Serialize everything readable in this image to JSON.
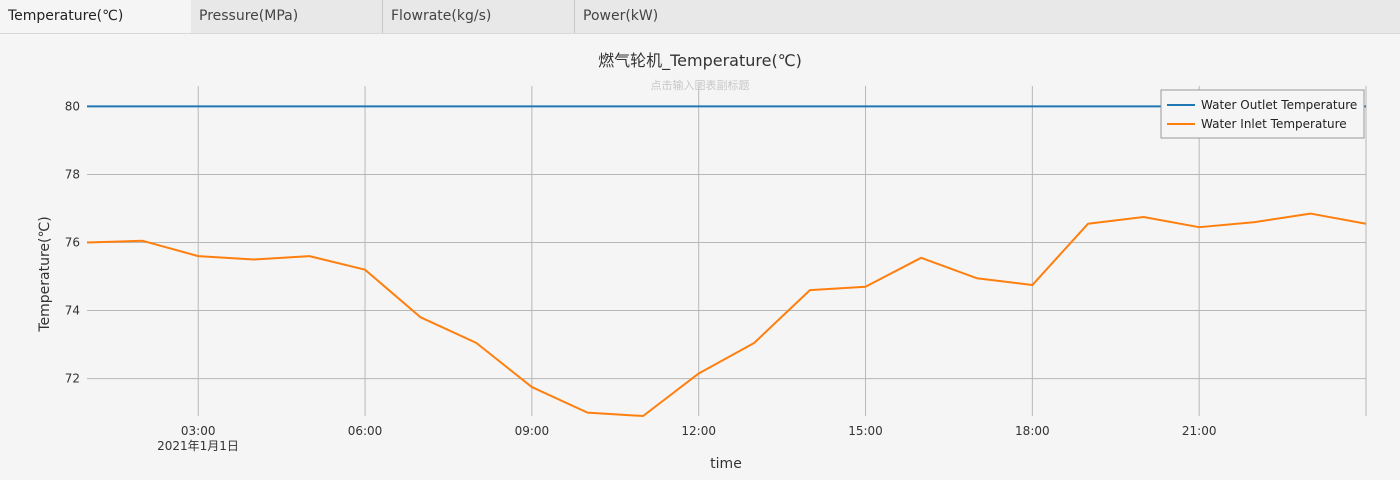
{
  "tabs": [
    {
      "label": "Temperature(℃)",
      "active": true
    },
    {
      "label": "Pressure(MPa)",
      "active": false
    },
    {
      "label": "Flowrate(kg/s)",
      "active": false
    },
    {
      "label": "Power(kW)",
      "active": false
    }
  ],
  "chart_data": {
    "type": "line",
    "title": "燃气轮机_Temperature(℃)",
    "subtitle": "点击输入图表副标题",
    "xlabel": "time",
    "ylabel": "Temperature(℃)",
    "date_label": "2021年1月1日",
    "x_ticks": [
      "03:00",
      "06:00",
      "09:00",
      "12:00",
      "15:00",
      "18:00",
      "21:00"
    ],
    "x_tick_hours": [
      3,
      6,
      9,
      12,
      15,
      18,
      21
    ],
    "xlim": [
      1,
      24
    ],
    "ylim": [
      70.9,
      80.6
    ],
    "y_ticks": [
      72,
      74,
      76,
      78,
      80
    ],
    "grid": true,
    "legend_position": "top-right",
    "x": [
      1,
      2,
      3,
      4,
      5,
      6,
      7,
      8,
      9,
      10,
      11,
      12,
      13,
      14,
      15,
      16,
      17,
      18,
      19,
      20,
      21,
      22,
      23,
      24
    ],
    "series": [
      {
        "name": "Water Outlet Temperature",
        "color": "#1f77b4",
        "values": [
          80,
          80,
          80,
          80,
          80,
          80,
          80,
          80,
          80,
          80,
          80,
          80,
          80,
          80,
          80,
          80,
          80,
          80,
          80,
          80,
          80,
          80,
          80,
          80
        ]
      },
      {
        "name": "Water Inlet Temperature",
        "color": "#ff7f0e",
        "values": [
          76.0,
          76.05,
          75.6,
          75.5,
          75.6,
          75.2,
          73.8,
          73.05,
          71.75,
          71.0,
          70.9,
          72.15,
          73.05,
          74.6,
          74.7,
          75.55,
          74.95,
          74.75,
          76.55,
          76.75,
          76.45,
          76.6,
          76.85,
          76.55
        ]
      }
    ]
  }
}
